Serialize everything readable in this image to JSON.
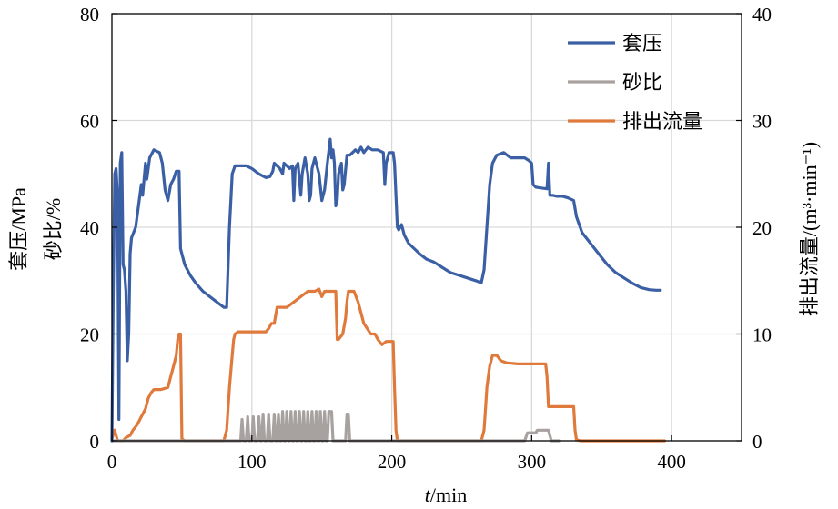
{
  "chart_data": {
    "type": "line",
    "xlabel_var": "t",
    "xlabel_unit": "/min",
    "ylabel_left_line1": "套压/MPa",
    "ylabel_left_line2": "砂比/%",
    "ylabel_right": "排出流量/(m³·min⁻¹)",
    "xlim": [
      0,
      450
    ],
    "ylim_left": [
      0,
      80
    ],
    "ylim_right": [
      0,
      40
    ],
    "xticks": [
      0,
      100,
      200,
      300,
      400
    ],
    "yticks_left": [
      0,
      20,
      40,
      60,
      80
    ],
    "yticks_right": [
      0,
      10,
      20,
      30,
      40
    ],
    "grid": true,
    "legend_position": "top-right",
    "series": [
      {
        "name": "套压",
        "axis": "left",
        "color": "#3b5fa5",
        "points": [
          [
            0,
            0
          ],
          [
            1,
            28
          ],
          [
            2,
            50
          ],
          [
            3,
            51
          ],
          [
            4,
            46
          ],
          [
            5,
            4
          ],
          [
            6,
            52
          ],
          [
            7,
            54
          ],
          [
            8,
            33
          ],
          [
            9,
            32
          ],
          [
            10,
            28
          ],
          [
            11,
            15
          ],
          [
            12,
            20
          ],
          [
            13,
            35
          ],
          [
            14,
            38
          ],
          [
            17,
            40
          ],
          [
            19,
            44
          ],
          [
            21,
            48
          ],
          [
            22,
            46
          ],
          [
            24,
            52
          ],
          [
            25,
            49
          ],
          [
            27,
            53
          ],
          [
            30,
            54.5
          ],
          [
            34,
            54
          ],
          [
            36,
            52
          ],
          [
            38,
            47
          ],
          [
            40,
            45
          ],
          [
            42,
            48
          ],
          [
            44,
            49
          ],
          [
            46,
            50.5
          ],
          [
            48,
            50.5
          ],
          [
            49,
            36
          ],
          [
            52,
            33
          ],
          [
            56,
            31
          ],
          [
            60,
            29.5
          ],
          [
            65,
            28
          ],
          [
            70,
            27
          ],
          [
            75,
            26
          ],
          [
            80,
            25
          ],
          [
            82,
            25
          ],
          [
            84,
            40
          ],
          [
            86,
            50
          ],
          [
            88,
            51.5
          ],
          [
            92,
            51.5
          ],
          [
            96,
            51.5
          ],
          [
            100,
            51
          ],
          [
            105,
            50
          ],
          [
            110,
            49.3
          ],
          [
            113,
            49.5
          ],
          [
            115,
            50.5
          ],
          [
            116,
            52
          ],
          [
            118,
            51.5
          ],
          [
            120,
            51
          ],
          [
            122,
            50
          ],
          [
            123,
            52
          ],
          [
            125,
            51.5
          ],
          [
            127,
            51
          ],
          [
            129,
            51.5
          ],
          [
            130,
            45
          ],
          [
            131,
            51
          ],
          [
            133,
            52
          ],
          [
            135,
            46
          ],
          [
            136,
            50
          ],
          [
            138,
            53
          ],
          [
            140,
            50
          ],
          [
            141,
            45
          ],
          [
            142,
            46
          ],
          [
            143,
            51
          ],
          [
            145,
            53
          ],
          [
            146,
            52
          ],
          [
            148,
            50
          ],
          [
            150,
            45
          ],
          [
            152,
            47
          ],
          [
            154,
            52
          ],
          [
            156,
            56.5
          ],
          [
            157,
            53
          ],
          [
            158,
            54.5
          ],
          [
            159,
            52
          ],
          [
            160,
            44
          ],
          [
            161,
            45
          ],
          [
            162,
            50
          ],
          [
            164,
            52
          ],
          [
            165,
            47
          ],
          [
            166,
            48
          ],
          [
            168,
            53.5
          ],
          [
            170,
            53.5
          ],
          [
            172,
            54
          ],
          [
            174,
            54.5
          ],
          [
            176,
            54
          ],
          [
            178,
            55
          ],
          [
            180,
            54
          ],
          [
            183,
            55
          ],
          [
            186,
            54.5
          ],
          [
            190,
            54.5
          ],
          [
            194,
            54
          ],
          [
            195,
            48
          ],
          [
            196,
            52
          ],
          [
            198,
            54
          ],
          [
            201,
            54
          ],
          [
            202,
            52
          ],
          [
            204,
            40
          ],
          [
            205,
            39.5
          ],
          [
            207,
            40.5
          ],
          [
            209,
            38.5
          ],
          [
            212,
            37
          ],
          [
            216,
            36
          ],
          [
            220,
            35
          ],
          [
            225,
            34
          ],
          [
            230,
            33.5
          ],
          [
            236,
            32.5
          ],
          [
            242,
            31.5
          ],
          [
            248,
            31
          ],
          [
            254,
            30.5
          ],
          [
            260,
            30
          ],
          [
            264,
            29.6
          ],
          [
            266,
            32
          ],
          [
            268,
            40
          ],
          [
            270,
            48
          ],
          [
            272,
            52
          ],
          [
            275,
            53.5
          ],
          [
            280,
            54
          ],
          [
            285,
            53
          ],
          [
            290,
            53
          ],
          [
            295,
            53
          ],
          [
            298,
            52.5
          ],
          [
            300,
            52
          ],
          [
            301,
            48
          ],
          [
            303,
            47.5
          ],
          [
            308,
            47.3
          ],
          [
            311,
            47.2
          ],
          [
            312,
            52
          ],
          [
            313,
            46
          ],
          [
            315,
            46
          ],
          [
            318,
            45.8
          ],
          [
            322,
            45.8
          ],
          [
            326,
            45.5
          ],
          [
            330,
            45
          ],
          [
            332,
            42
          ],
          [
            336,
            39
          ],
          [
            342,
            37
          ],
          [
            348,
            35
          ],
          [
            354,
            33
          ],
          [
            360,
            31.5
          ],
          [
            366,
            30.5
          ],
          [
            372,
            29.5
          ],
          [
            378,
            28.7
          ],
          [
            384,
            28.3
          ],
          [
            389,
            28.2
          ],
          [
            392,
            28.2
          ]
        ]
      },
      {
        "name": "砂比",
        "axis": "left",
        "color": "#a7a29f",
        "points": [
          [
            0,
            0
          ],
          [
            92,
            0
          ],
          [
            93,
            4
          ],
          [
            94,
            0
          ],
          [
            96,
            0
          ],
          [
            97,
            4.5
          ],
          [
            98,
            0
          ],
          [
            100,
            0
          ],
          [
            101,
            4.5
          ],
          [
            102,
            0
          ],
          [
            104,
            0
          ],
          [
            105,
            4.5
          ],
          [
            106,
            0
          ],
          [
            107,
            0
          ],
          [
            108,
            5
          ],
          [
            109,
            0
          ],
          [
            111,
            0
          ],
          [
            112,
            5
          ],
          [
            113,
            0
          ],
          [
            115,
            0
          ],
          [
            116,
            5
          ],
          [
            117,
            0
          ],
          [
            118,
            0
          ],
          [
            119,
            5
          ],
          [
            120,
            0
          ],
          [
            121,
            0
          ],
          [
            122,
            5.5
          ],
          [
            123,
            0
          ],
          [
            124,
            0
          ],
          [
            125,
            5.5
          ],
          [
            126,
            0
          ],
          [
            127,
            0
          ],
          [
            128,
            5.5
          ],
          [
            129,
            0
          ],
          [
            130,
            0
          ],
          [
            131,
            5.5
          ],
          [
            132,
            0
          ],
          [
            133,
            0
          ],
          [
            134,
            5.5
          ],
          [
            135,
            0
          ],
          [
            136,
            0
          ],
          [
            137,
            5.5
          ],
          [
            138,
            0
          ],
          [
            139,
            0
          ],
          [
            140,
            5.5
          ],
          [
            141,
            0
          ],
          [
            142,
            0
          ],
          [
            143,
            5.5
          ],
          [
            144,
            0
          ],
          [
            145,
            0
          ],
          [
            146,
            5.5
          ],
          [
            147,
            0
          ],
          [
            148,
            0
          ],
          [
            149,
            5.5
          ],
          [
            150,
            0
          ],
          [
            151,
            0
          ],
          [
            152,
            5.5
          ],
          [
            153,
            0
          ],
          [
            154,
            0
          ],
          [
            155,
            5.5
          ],
          [
            157,
            5.5
          ],
          [
            158,
            0
          ],
          [
            167,
            0
          ],
          [
            168,
            5
          ],
          [
            169,
            5
          ],
          [
            170,
            0
          ],
          [
            295,
            0
          ],
          [
            297,
            1.5
          ],
          [
            303,
            1.5
          ],
          [
            304,
            2
          ],
          [
            312,
            2
          ],
          [
            314,
            0
          ],
          [
            320,
            0
          ]
        ]
      },
      {
        "name": "排出流量",
        "axis": "right",
        "color": "#e07a3c",
        "points": [
          [
            0,
            0.2
          ],
          [
            2,
            1
          ],
          [
            3,
            0.5
          ],
          [
            4,
            0
          ],
          [
            8,
            0
          ],
          [
            10,
            0.3
          ],
          [
            13,
            0.5
          ],
          [
            15,
            1
          ],
          [
            18,
            1.5
          ],
          [
            20,
            2
          ],
          [
            22,
            2.5
          ],
          [
            24,
            3
          ],
          [
            26,
            4
          ],
          [
            28,
            4.5
          ],
          [
            30,
            4.8
          ],
          [
            35,
            4.8
          ],
          [
            40,
            5
          ],
          [
            42,
            6
          ],
          [
            44,
            7
          ],
          [
            46,
            8
          ],
          [
            47,
            9.5
          ],
          [
            48,
            10
          ],
          [
            49,
            10
          ],
          [
            50,
            0.2
          ],
          [
            52,
            0
          ],
          [
            80,
            0
          ],
          [
            82,
            1
          ],
          [
            84,
            5
          ],
          [
            86,
            8
          ],
          [
            87,
            9.5
          ],
          [
            88,
            10
          ],
          [
            90,
            10.2
          ],
          [
            100,
            10.2
          ],
          [
            110,
            10.2
          ],
          [
            112,
            10.5
          ],
          [
            114,
            11
          ],
          [
            116,
            11
          ],
          [
            118,
            12.5
          ],
          [
            120,
            12.5
          ],
          [
            125,
            12.5
          ],
          [
            130,
            13
          ],
          [
            135,
            13.5
          ],
          [
            140,
            14
          ],
          [
            145,
            14
          ],
          [
            148,
            14.2
          ],
          [
            150,
            13.5
          ],
          [
            152,
            14
          ],
          [
            155,
            14
          ],
          [
            158,
            14
          ],
          [
            160,
            14
          ],
          [
            161,
            9.5
          ],
          [
            162,
            9.5
          ],
          [
            165,
            10
          ],
          [
            167,
            11.5
          ],
          [
            168,
            13
          ],
          [
            169,
            14
          ],
          [
            173,
            14
          ],
          [
            176,
            13
          ],
          [
            180,
            11
          ],
          [
            185,
            10
          ],
          [
            188,
            10
          ],
          [
            190,
            9.5
          ],
          [
            193,
            9
          ],
          [
            196,
            9.3
          ],
          [
            201,
            9.3
          ],
          [
            202,
            5
          ],
          [
            203,
            1
          ],
          [
            204,
            0
          ],
          [
            264,
            0
          ],
          [
            266,
            1
          ],
          [
            267,
            3
          ],
          [
            268,
            5
          ],
          [
            270,
            7
          ],
          [
            272,
            8
          ],
          [
            275,
            8
          ],
          [
            278,
            7.5
          ],
          [
            282,
            7.3
          ],
          [
            290,
            7.2
          ],
          [
            300,
            7.2
          ],
          [
            310,
            7.2
          ],
          [
            311,
            6
          ],
          [
            312,
            3.2
          ],
          [
            315,
            3.2
          ],
          [
            320,
            3.2
          ],
          [
            326,
            3.2
          ],
          [
            330,
            3.2
          ],
          [
            331,
            1
          ],
          [
            332,
            0.1
          ],
          [
            335,
            0
          ],
          [
            395,
            0
          ]
        ]
      }
    ]
  }
}
